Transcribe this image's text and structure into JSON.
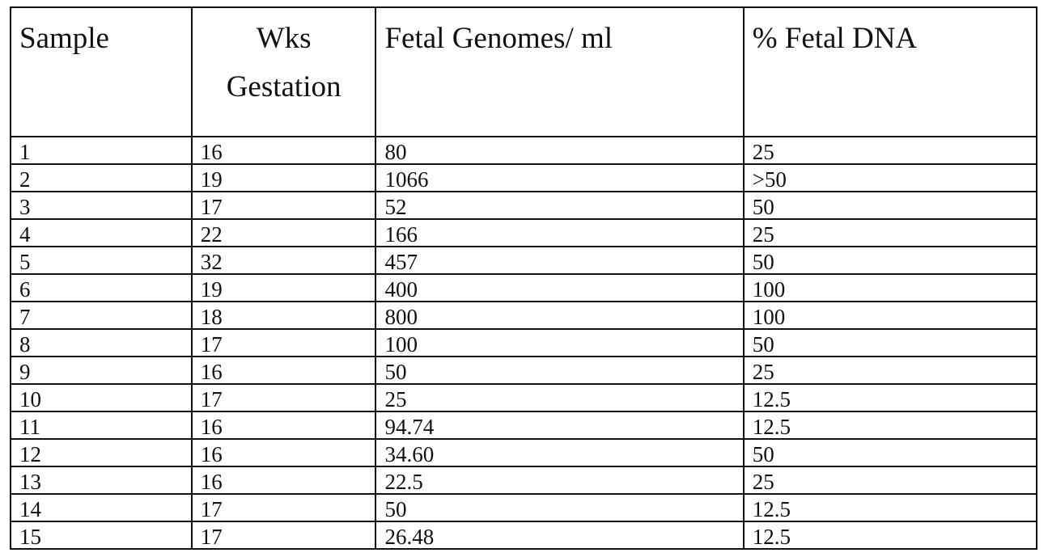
{
  "table": {
    "headers": [
      "Sample",
      "Wks Gestation",
      "Fetal Genomes/ ml",
      "% Fetal DNA"
    ],
    "header_wks_line1": "Wks",
    "header_wks_line2": "Gestation",
    "rows": [
      [
        "1",
        "16",
        "80",
        "25"
      ],
      [
        "2",
        "19",
        "1066",
        ">50"
      ],
      [
        "3",
        "17",
        "52",
        "50"
      ],
      [
        "4",
        "22",
        "166",
        "25"
      ],
      [
        "5",
        "32",
        "457",
        "50"
      ],
      [
        "6",
        "19",
        "400",
        "100"
      ],
      [
        "7",
        "18",
        "800",
        "100"
      ],
      [
        "8",
        "17",
        "100",
        "50"
      ],
      [
        "9",
        "16",
        "50",
        "25"
      ],
      [
        "10",
        "17",
        "25",
        "12.5"
      ],
      [
        "11",
        "16",
        "94.74",
        "12.5"
      ],
      [
        "12",
        "16",
        "34.60",
        "50"
      ],
      [
        "13",
        "16",
        "22.5",
        "25"
      ],
      [
        "14",
        "17",
        "50",
        "12.5"
      ],
      [
        "15",
        "17",
        "26.48",
        "12.5"
      ]
    ]
  }
}
